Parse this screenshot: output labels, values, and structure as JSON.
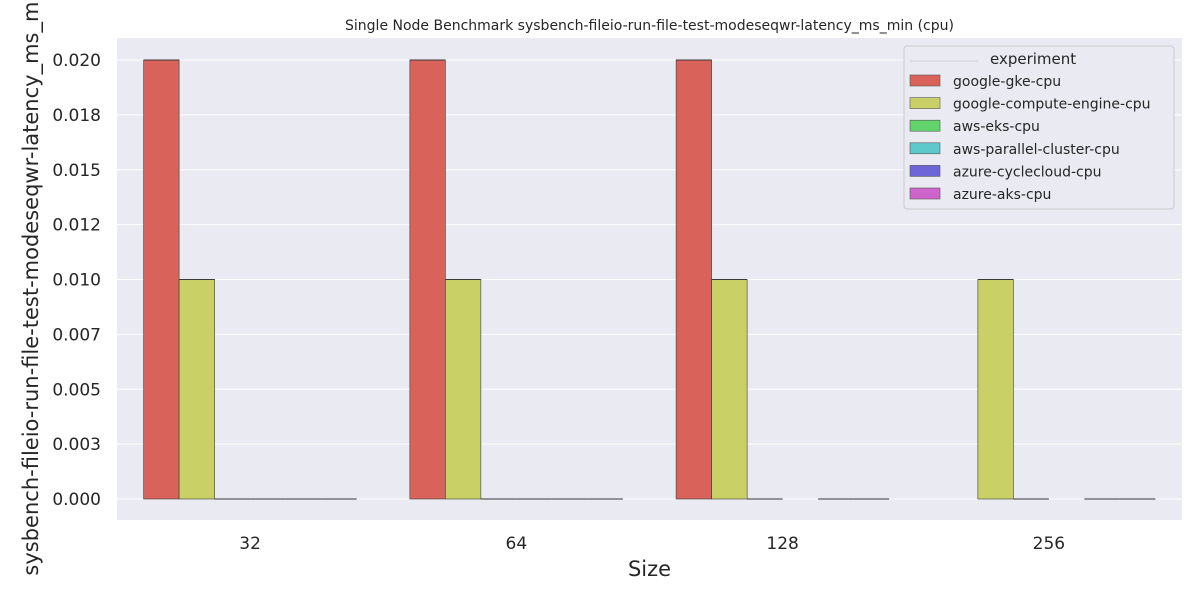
{
  "chart_data": {
    "type": "bar",
    "title": "Single Node Benchmark sysbench-fileio-run-file-test-modeseqwr-latency_ms_min (cpu)",
    "xlabel": "Size",
    "ylabel": "sysbench-fileio-run-file-test-modeseqwr-latency_ms_min",
    "categories": [
      "32",
      "64",
      "128",
      "256"
    ],
    "ylim": [
      0,
      0.0225
    ],
    "yticks": [
      0.0,
      0.0025,
      0.005,
      0.0075,
      0.01,
      0.0125,
      0.015,
      0.0175,
      0.02
    ],
    "ytick_labels": [
      "0.000",
      "0.003",
      "0.005",
      "0.007",
      "0.010",
      "0.012",
      "0.015",
      "0.018",
      "0.020"
    ],
    "grid": true,
    "legend_title": "experiment",
    "legend_position": "top-right",
    "series": [
      {
        "name": "google-gke-cpu",
        "color": "#d9635a",
        "values": [
          0.02,
          0.02,
          0.02,
          null
        ]
      },
      {
        "name": "google-compute-engine-cpu",
        "color": "#c9d166",
        "values": [
          0.01,
          0.01,
          0.01,
          0.01
        ]
      },
      {
        "name": "aws-eks-cpu",
        "color": "#62d46c",
        "values": [
          0.0,
          0.0,
          0.0,
          0.0
        ]
      },
      {
        "name": "aws-parallel-cluster-cpu",
        "color": "#5ec9cb",
        "values": [
          0.0,
          0.0,
          null,
          null
        ]
      },
      {
        "name": "azure-cyclecloud-cpu",
        "color": "#6e66d8",
        "values": [
          0.0,
          0.0,
          0.0,
          0.0
        ]
      },
      {
        "name": "azure-aks-cpu",
        "color": "#cf64cc",
        "values": [
          0.0,
          0.0,
          0.0,
          0.0
        ]
      }
    ]
  }
}
